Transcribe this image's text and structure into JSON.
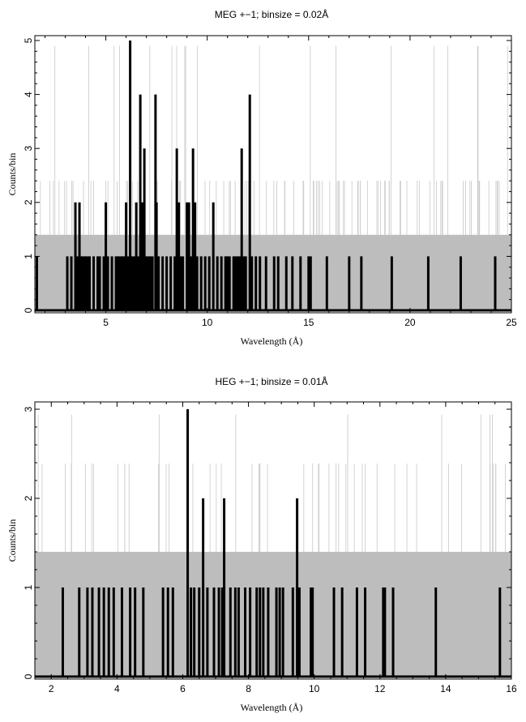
{
  "chart_data": [
    {
      "type": "histogram",
      "title": "MEG +−1; binsize = 0.02Å",
      "xlabel": "Wavelength (Å)",
      "ylabel": "Counts/bin",
      "xlim": [
        1.5,
        25
      ],
      "ylim": [
        0,
        5
      ],
      "xticks": [
        5,
        10,
        15,
        20,
        25
      ],
      "yticks": [
        0,
        1,
        2,
        3,
        4,
        5
      ],
      "background_level": 1.4,
      "background_level_note": "gray band from 0 to ~1.4 counts/bin",
      "series": [
        {
          "color": "#000000",
          "style": "histogram",
          "points": [
            [
              1.6,
              1
            ],
            [
              3.1,
              1
            ],
            [
              3.3,
              1
            ],
            [
              3.5,
              2
            ],
            [
              3.6,
              1
            ],
            [
              3.7,
              2
            ],
            [
              3.8,
              1
            ],
            [
              3.9,
              1
            ],
            [
              4.0,
              1
            ],
            [
              4.1,
              1
            ],
            [
              4.2,
              1
            ],
            [
              4.4,
              1
            ],
            [
              4.6,
              1
            ],
            [
              4.7,
              1
            ],
            [
              4.9,
              1
            ],
            [
              5.0,
              2
            ],
            [
              5.1,
              1
            ],
            [
              5.3,
              1
            ],
            [
              5.5,
              1
            ],
            [
              5.6,
              1
            ],
            [
              5.7,
              1
            ],
            [
              5.8,
              1
            ],
            [
              5.9,
              1
            ],
            [
              6.0,
              2
            ],
            [
              6.1,
              1
            ],
            [
              6.2,
              5
            ],
            [
              6.3,
              1
            ],
            [
              6.4,
              1
            ],
            [
              6.5,
              2
            ],
            [
              6.6,
              1
            ],
            [
              6.7,
              4
            ],
            [
              6.8,
              2
            ],
            [
              6.9,
              3
            ],
            [
              7.0,
              1
            ],
            [
              7.1,
              1
            ],
            [
              7.2,
              1
            ],
            [
              7.3,
              1
            ],
            [
              7.45,
              4
            ],
            [
              7.5,
              2
            ],
            [
              7.6,
              1
            ],
            [
              7.8,
              1
            ],
            [
              8.0,
              1
            ],
            [
              8.2,
              1
            ],
            [
              8.4,
              1
            ],
            [
              8.5,
              3
            ],
            [
              8.6,
              2
            ],
            [
              8.7,
              1
            ],
            [
              8.8,
              1
            ],
            [
              9.0,
              2
            ],
            [
              9.1,
              2
            ],
            [
              9.2,
              1
            ],
            [
              9.3,
              3
            ],
            [
              9.4,
              2
            ],
            [
              9.5,
              1
            ],
            [
              9.7,
              1
            ],
            [
              9.9,
              1
            ],
            [
              10.1,
              1
            ],
            [
              10.3,
              2
            ],
            [
              10.5,
              1
            ],
            [
              10.7,
              1
            ],
            [
              10.9,
              1
            ],
            [
              11.0,
              1
            ],
            [
              11.1,
              1
            ],
            [
              11.3,
              1
            ],
            [
              11.4,
              1
            ],
            [
              11.5,
              1
            ],
            [
              11.6,
              1
            ],
            [
              11.7,
              3
            ],
            [
              11.8,
              1
            ],
            [
              11.9,
              1
            ],
            [
              12.1,
              4
            ],
            [
              12.2,
              1
            ],
            [
              12.4,
              1
            ],
            [
              12.6,
              1
            ],
            [
              12.9,
              1
            ],
            [
              13.3,
              1
            ],
            [
              13.5,
              1
            ],
            [
              13.9,
              1
            ],
            [
              14.2,
              1
            ],
            [
              14.6,
              1
            ],
            [
              15.0,
              1
            ],
            [
              15.1,
              1
            ],
            [
              15.9,
              1
            ],
            [
              17.0,
              1
            ],
            [
              17.6,
              1
            ],
            [
              19.1,
              1
            ],
            [
              20.9,
              1
            ],
            [
              22.5,
              1
            ],
            [
              24.2,
              1
            ]
          ]
        }
      ]
    },
    {
      "type": "histogram",
      "title": "HEG +−1; binsize = 0.01Å",
      "xlabel": "Wavelength (Å)",
      "ylabel": "Counts/bin",
      "xlim": [
        1.5,
        16
      ],
      "ylim": [
        0,
        3
      ],
      "xticks": [
        2,
        4,
        6,
        8,
        10,
        12,
        14,
        16
      ],
      "yticks": [
        0,
        1,
        2,
        3
      ],
      "background_level": 1.4,
      "background_level_note": "gray band from 0 to ~1.4 counts/bin",
      "series": [
        {
          "color": "#000000",
          "style": "histogram",
          "points": [
            [
              2.35,
              1
            ],
            [
              2.85,
              1
            ],
            [
              3.1,
              1
            ],
            [
              3.25,
              1
            ],
            [
              3.45,
              1
            ],
            [
              3.6,
              1
            ],
            [
              3.75,
              1
            ],
            [
              3.9,
              1
            ],
            [
              4.15,
              1
            ],
            [
              4.4,
              1
            ],
            [
              4.55,
              1
            ],
            [
              4.8,
              1
            ],
            [
              5.4,
              1
            ],
            [
              5.55,
              1
            ],
            [
              5.7,
              1
            ],
            [
              6.15,
              3
            ],
            [
              6.25,
              1
            ],
            [
              6.35,
              1
            ],
            [
              6.5,
              1
            ],
            [
              6.62,
              2
            ],
            [
              6.75,
              1
            ],
            [
              6.95,
              1
            ],
            [
              7.1,
              1
            ],
            [
              7.2,
              1
            ],
            [
              7.26,
              2
            ],
            [
              7.45,
              1
            ],
            [
              7.6,
              1
            ],
            [
              7.7,
              1
            ],
            [
              7.9,
              1
            ],
            [
              8.05,
              1
            ],
            [
              8.25,
              1
            ],
            [
              8.35,
              1
            ],
            [
              8.45,
              1
            ],
            [
              8.6,
              1
            ],
            [
              8.85,
              1
            ],
            [
              8.95,
              1
            ],
            [
              9.05,
              1
            ],
            [
              9.35,
              1
            ],
            [
              9.48,
              2
            ],
            [
              9.55,
              1
            ],
            [
              9.9,
              1
            ],
            [
              9.95,
              1
            ],
            [
              10.6,
              1
            ],
            [
              10.85,
              1
            ],
            [
              11.3,
              1
            ],
            [
              11.55,
              1
            ],
            [
              12.1,
              1
            ],
            [
              12.15,
              1
            ],
            [
              12.4,
              1
            ],
            [
              13.7,
              1
            ],
            [
              15.65,
              1
            ]
          ]
        }
      ]
    }
  ]
}
